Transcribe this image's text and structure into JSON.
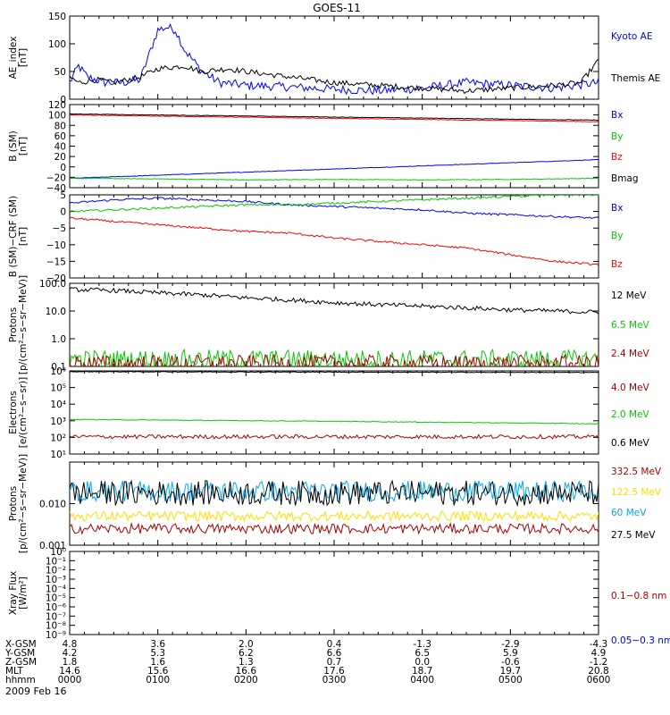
{
  "title": "GOES-11",
  "date_label": "2009 Feb 16",
  "x_ticks": [
    "0000",
    "0100",
    "0200",
    "0300",
    "0400",
    "0500",
    "0600"
  ],
  "orbit_rows": [
    {
      "label": "X-GSM",
      "values": [
        "4.8",
        "3.6",
        "2.0",
        "0.4",
        "-1.3",
        "-2.9",
        "-4.3"
      ]
    },
    {
      "label": "Y-GSM",
      "values": [
        "4.2",
        "5.3",
        "6.2",
        "6.6",
        "6.5",
        "5.9",
        "4.9"
      ]
    },
    {
      "label": "Z-GSM",
      "values": [
        "1.8",
        "1.6",
        "1.3",
        "0.7",
        "0.0",
        "-0.6",
        "-1.2"
      ]
    },
    {
      "label": "MLT",
      "values": [
        "14.6",
        "15.6",
        "16.6",
        "17.6",
        "18.7",
        "19.7",
        "20.8"
      ]
    },
    {
      "label": "hhmm",
      "values": [
        "0000",
        "0100",
        "0200",
        "0300",
        "0400",
        "0500",
        "0600"
      ]
    }
  ],
  "chart_data": [
    {
      "type": "line",
      "ylabel": "AE_index\n[nT]",
      "yscale": "linear",
      "ylim": [
        0,
        150
      ],
      "yticks": [
        {
          "v": 0,
          "t": "0"
        },
        {
          "v": 50,
          "t": "50"
        },
        {
          "v": 100,
          "t": "100"
        },
        {
          "v": 150,
          "t": "150"
        }
      ],
      "series": [
        {
          "name": "Kyoto AE",
          "color": "#0000ff",
          "noise": 8,
          "x": [
            0,
            0.1,
            0.2,
            0.4,
            0.6,
            0.8,
            0.9,
            1.0,
            1.1,
            1.2,
            1.3,
            1.5,
            1.7,
            2.0,
            2.5,
            3.0,
            3.5,
            4.0,
            4.5,
            5.0,
            5.5,
            6.0
          ],
          "y": [
            30,
            60,
            40,
            30,
            30,
            35,
            80,
            125,
            130,
            125,
            90,
            50,
            30,
            25,
            22,
            18,
            15,
            20,
            30,
            25,
            20,
            30
          ]
        },
        {
          "name": "Themis AE",
          "color": "#000000",
          "noise": 5,
          "x": [
            0,
            0.1,
            0.3,
            0.5,
            0.8,
            1.0,
            1.3,
            1.5,
            1.8,
            2.0,
            2.5,
            3.0,
            3.5,
            4.0,
            4.5,
            5.0,
            5.5,
            5.8,
            6.0
          ],
          "y": [
            40,
            30,
            35,
            30,
            40,
            55,
            60,
            50,
            55,
            50,
            40,
            30,
            25,
            20,
            15,
            20,
            25,
            30,
            70
          ]
        }
      ]
    },
    {
      "type": "line",
      "ylabel": "B (SM)\n[nT]",
      "yscale": "linear",
      "ylim": [
        -40,
        120
      ],
      "yticks": [
        {
          "v": -40,
          "t": "−40"
        },
        {
          "v": -20,
          "t": "−20"
        },
        {
          "v": 0,
          "t": "0"
        },
        {
          "v": 20,
          "t": "20"
        },
        {
          "v": 40,
          "t": "40"
        },
        {
          "v": 60,
          "t": "60"
        },
        {
          "v": 80,
          "t": "80"
        },
        {
          "v": 100,
          "t": "100"
        },
        {
          "v": 120,
          "t": "120"
        }
      ],
      "series": [
        {
          "name": "Bx",
          "color": "#0000ff",
          "noise": 0.5,
          "x": [
            0,
            6
          ],
          "y": [
            -22,
            14
          ]
        },
        {
          "name": "By",
          "color": "#00cc00",
          "noise": 0.5,
          "x": [
            0,
            1,
            2,
            3,
            4,
            5,
            6
          ],
          "y": [
            -22,
            -23,
            -25,
            -24,
            -25,
            -24,
            -22
          ]
        },
        {
          "name": "Bz",
          "color": "#ff0000",
          "noise": 0.5,
          "x": [
            0,
            6
          ],
          "y": [
            100,
            87
          ]
        },
        {
          "name": "Bmag",
          "color": "#000000",
          "noise": 0.5,
          "x": [
            0,
            6
          ],
          "y": [
            102,
            90
          ]
        }
      ]
    },
    {
      "type": "line",
      "ylabel": "B (SM)−CRF (SM)\n[nT]",
      "yscale": "linear",
      "ylim": [
        -20,
        5
      ],
      "yticks": [
        {
          "v": -20,
          "t": "−20"
        },
        {
          "v": -15,
          "t": "−15"
        },
        {
          "v": -10,
          "t": "−10"
        },
        {
          "v": -5,
          "t": "−5"
        },
        {
          "v": 0,
          "t": "0"
        },
        {
          "v": 5,
          "t": "5"
        }
      ],
      "series": [
        {
          "name": "Bx",
          "color": "#0000ff",
          "noise": 0.3,
          "x": [
            0,
            0.5,
            1.0,
            1.5,
            2.0,
            2.5,
            3.0,
            3.5,
            4.0,
            4.5,
            5.0,
            5.5,
            6.0
          ],
          "y": [
            2.5,
            3.5,
            4,
            3.5,
            3,
            2,
            1.5,
            1,
            0.5,
            -0.5,
            -1,
            -1.5,
            -2
          ]
        },
        {
          "name": "By",
          "color": "#00cc00",
          "noise": 0.3,
          "x": [
            0,
            0.5,
            1.0,
            1.5,
            2.0,
            2.5,
            3.0,
            3.5,
            4.0,
            4.5,
            5.0,
            5.5,
            6.0
          ],
          "y": [
            0,
            0.5,
            1,
            1.5,
            2,
            2,
            2.5,
            3,
            3.5,
            4,
            4.5,
            5,
            5
          ]
        },
        {
          "name": "Bz",
          "color": "#ff0000",
          "noise": 0.3,
          "x": [
            0,
            0.5,
            1.0,
            1.5,
            2.0,
            2.5,
            3.0,
            3.5,
            4.0,
            4.5,
            5.0,
            5.5,
            6.0
          ],
          "y": [
            -2,
            -3,
            -4,
            -5,
            -6,
            -6.5,
            -8,
            -9,
            -10,
            -11,
            -13,
            -15,
            -16
          ]
        }
      ]
    },
    {
      "type": "line",
      "ylabel": "Protons\n[p/(cm²−s−sr−MeV)]",
      "yscale": "log",
      "ylim": [
        0.1,
        100
      ],
      "yticks": [
        {
          "v": 0.1,
          "t": "0.1"
        },
        {
          "v": 1,
          "t": "1.0"
        },
        {
          "v": 10,
          "t": "10.0"
        },
        {
          "v": 100,
          "t": "100.0"
        }
      ],
      "series": [
        {
          "name": "12 MeV",
          "color": "#000000",
          "noise": 0.08,
          "x": [
            0,
            0.5,
            1.0,
            1.5,
            2.0,
            2.5,
            3.0,
            3.5,
            4.0,
            4.5,
            5.0,
            5.5,
            6.0
          ],
          "y": [
            60,
            55,
            45,
            38,
            30,
            25,
            20,
            17,
            15,
            13,
            11,
            10,
            9
          ]
        },
        {
          "name": "6.5 MeV",
          "color": "#00cc00",
          "noise": 0.35,
          "x": [
            0,
            6
          ],
          "y": [
            0.18,
            0.18
          ]
        },
        {
          "name": "2.4 MeV",
          "color": "#aa0000",
          "noise": 0.3,
          "x": [
            0,
            6
          ],
          "y": [
            0.13,
            0.13
          ]
        }
      ]
    },
    {
      "type": "line",
      "ylabel": "Electrons\n[e/(cm²−s−sr)]",
      "yscale": "log",
      "ylim": [
        10,
        1000000
      ],
      "yticks": [
        {
          "v": 10,
          "t": "10¹"
        },
        {
          "v": 100,
          "t": "10²"
        },
        {
          "v": 1000,
          "t": "10³"
        },
        {
          "v": 10000,
          "t": "10⁴"
        },
        {
          "v": 100000,
          "t": "10⁵"
        },
        {
          "v": 1000000,
          "t": "10⁶"
        }
      ],
      "series": [
        {
          "name": "4.0 MeV",
          "color": "#aa0000",
          "noise": 0.12,
          "x": [
            0,
            6
          ],
          "y": [
            110,
            110
          ]
        },
        {
          "name": "2.0 MeV",
          "color": "#00cc00",
          "noise": 0.02,
          "x": [
            0,
            6
          ],
          "y": [
            1200,
            650
          ]
        },
        {
          "name": "0.6 MeV",
          "color": "#000000",
          "noise": 0.02,
          "x": [
            0,
            6
          ],
          "y": [
            900000,
            800000
          ]
        }
      ]
    },
    {
      "type": "line",
      "ylabel": "Protons\n[p/(cm²−s−sr−MeV)]",
      "yscale": "log",
      "ylim": [
        0.001,
        0.1
      ],
      "yticks": [
        {
          "v": 0.001,
          "t": "0.001"
        },
        {
          "v": 0.01,
          "t": "0.010"
        }
      ],
      "series": [
        {
          "name": "332.5 MeV",
          "color": "#aa0000",
          "noise": 0.12,
          "x": [
            0,
            6
          ],
          "y": [
            0.0025,
            0.0025
          ]
        },
        {
          "name": "122.5 MeV",
          "color": "#ffdd00",
          "noise": 0.12,
          "x": [
            0,
            6
          ],
          "y": [
            0.005,
            0.005
          ]
        },
        {
          "name": "60 MeV",
          "color": "#00aaee",
          "noise": 0.25,
          "x": [
            0,
            6
          ],
          "y": [
            0.02,
            0.02
          ]
        },
        {
          "name": "27.5 MeV",
          "color": "#000000",
          "noise": 0.3,
          "x": [
            0,
            6
          ],
          "y": [
            0.018,
            0.018
          ]
        }
      ]
    },
    {
      "type": "line",
      "ylabel": "Xray Flux\n[W/m²]",
      "yscale": "log",
      "ylim": [
        1e-09,
        1
      ],
      "yticks": [
        {
          "v": 1e-09,
          "t": "10⁻⁹"
        },
        {
          "v": 1e-08,
          "t": "10⁻⁸"
        },
        {
          "v": 1e-07,
          "t": "10⁻⁷"
        },
        {
          "v": 1e-06,
          "t": "10⁻⁶"
        },
        {
          "v": 1e-05,
          "t": "10⁻⁵"
        },
        {
          "v": 0.0001,
          "t": "10⁻⁴"
        },
        {
          "v": 0.001,
          "t": "10⁻³"
        },
        {
          "v": 0.01,
          "t": "10⁻²"
        },
        {
          "v": 0.1,
          "t": "10⁻¹"
        },
        {
          "v": 1,
          "t": "10⁰"
        }
      ],
      "legend_entries": [
        {
          "name": "0.1−0.8 nm",
          "color": "#aa0000"
        },
        {
          "name": "0.05−0.3 nm",
          "color": "#0000ff"
        }
      ],
      "series": []
    }
  ]
}
